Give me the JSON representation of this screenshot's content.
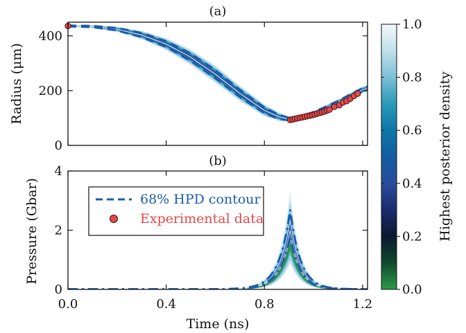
{
  "chart_data": [
    {
      "panel": "(a)",
      "type": "line",
      "ylabel": "Radius (μm)",
      "xlabel": "",
      "xlim": [
        0.0,
        1.22
      ],
      "ylim": [
        0,
        450
      ],
      "yticks": [
        0,
        200,
        400
      ],
      "xticks": [
        0.0,
        0.4,
        0.8,
        1.2
      ],
      "x": [
        0.0,
        0.1,
        0.2,
        0.3,
        0.4,
        0.5,
        0.6,
        0.7,
        0.8,
        0.86,
        0.9,
        0.95,
        1.0,
        1.05,
        1.1,
        1.15,
        1.2,
        1.22
      ],
      "band_center": [
        436,
        434,
        424,
        403,
        370,
        322,
        260,
        190,
        128,
        104,
        96,
        103,
        118,
        137,
        158,
        181,
        203,
        208
      ],
      "band_half_width": [
        2,
        3,
        6,
        10,
        14,
        18,
        20,
        18,
        14,
        10,
        6,
        5,
        5,
        6,
        6,
        7,
        8,
        8
      ],
      "experimental_data": {
        "x": [
          0.0,
          0.905,
          0.915,
          0.925,
          0.935,
          0.945,
          0.955,
          0.965,
          0.975,
          0.985,
          0.995,
          1.005,
          1.015,
          1.025,
          1.035,
          1.045,
          1.055,
          1.065,
          1.085,
          1.105,
          1.12,
          1.135,
          1.15,
          1.165,
          1.18
        ],
        "y": [
          436,
          93,
          95,
          97,
          99,
          101,
          103,
          105,
          107,
          109,
          111,
          113,
          116,
          119,
          121,
          124,
          128,
          131,
          141,
          147,
          157,
          162,
          171,
          181,
          189
        ]
      }
    },
    {
      "panel": "(b)",
      "type": "line",
      "ylabel": "Pressure (Gbar)",
      "xlabel": "Time (ns)",
      "xlim": [
        0.0,
        1.22
      ],
      "ylim": [
        0,
        4
      ],
      "yticks": [
        0,
        2,
        4
      ],
      "xticks": [
        0.0,
        0.4,
        0.8,
        1.2
      ],
      "peak_time": 0.905,
      "max_peak": 3.35,
      "contour_upper_peak": 2.7,
      "contour_lower_peak": 1.8
    }
  ],
  "legend": {
    "contour_label": "68% HPD contour",
    "data_label": "Experimental data"
  },
  "colorbar": {
    "label": "Highest posterior density",
    "ticks": [
      "0.0",
      "0.2",
      "0.4",
      "0.6",
      "0.8",
      "1.0"
    ],
    "stops": [
      "#2e9a48",
      "#0f4a2c",
      "#0b1a30",
      "#1b2c6c",
      "#2a4b9c",
      "#125ea0",
      "#0e76a8",
      "#2a9ab8",
      "#7cc0d6",
      "#bfe0ea",
      "#f2f8fb"
    ]
  },
  "colors": {
    "contour": "#1a5caa",
    "data_fill": "#e34848",
    "data_text": "#e34848"
  }
}
